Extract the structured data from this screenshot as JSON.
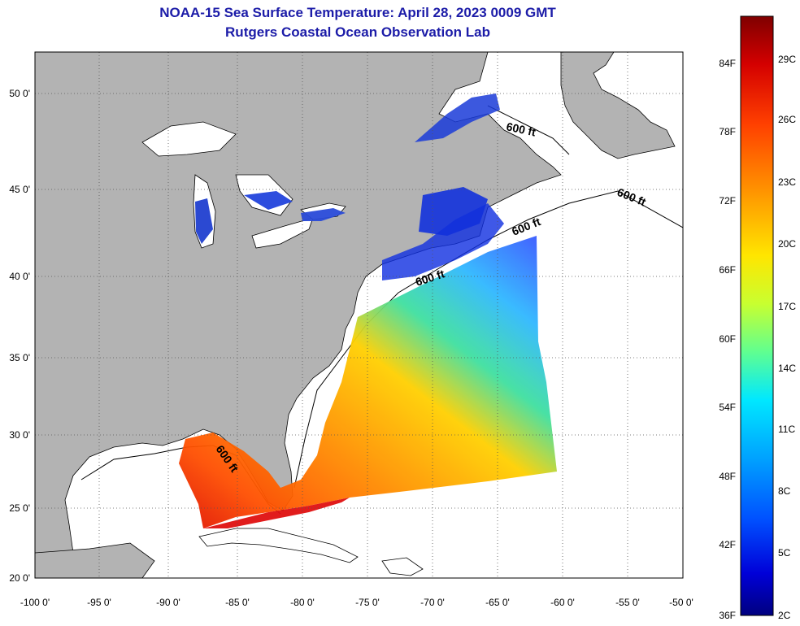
{
  "title": {
    "line1": "NOAA-15 Sea Surface Temperature:  April 28, 2023 0009 GMT",
    "line2": "Rutgers Coastal Ocean Observation Lab"
  },
  "map": {
    "lon_ticks": [
      "-100 0'",
      "-95 0'",
      "-90 0'",
      "-85 0'",
      "-80 0'",
      "-75 0'",
      "-70 0'",
      "-65 0'",
      "-60 0'",
      "-55 0'",
      "-50 0'"
    ],
    "lat_ticks": [
      "50 0'",
      "45 0'",
      "40 0'",
      "35 0'",
      "30 0'",
      "25 0'",
      "20 0'"
    ],
    "contour_label": "600 ft",
    "colors": {
      "land": "#b3b3b3",
      "water": "#ffffff",
      "grid": "#555555"
    }
  },
  "colorbar": {
    "fahrenheit": [
      "84F",
      "78F",
      "72F",
      "66F",
      "60F",
      "54F",
      "48F",
      "42F",
      "36F"
    ],
    "celsius": [
      "29C",
      "26C",
      "23C",
      "20C",
      "17C",
      "14C",
      "11C",
      "8C",
      "5C",
      "2C"
    ],
    "gradient": [
      "#7f0000",
      "#d40000",
      "#ff4000",
      "#ff9a00",
      "#ffe600",
      "#c8ff30",
      "#60ff90",
      "#00e8ff",
      "#00a0ff",
      "#0050ff",
      "#0000d8",
      "#00007f"
    ]
  }
}
